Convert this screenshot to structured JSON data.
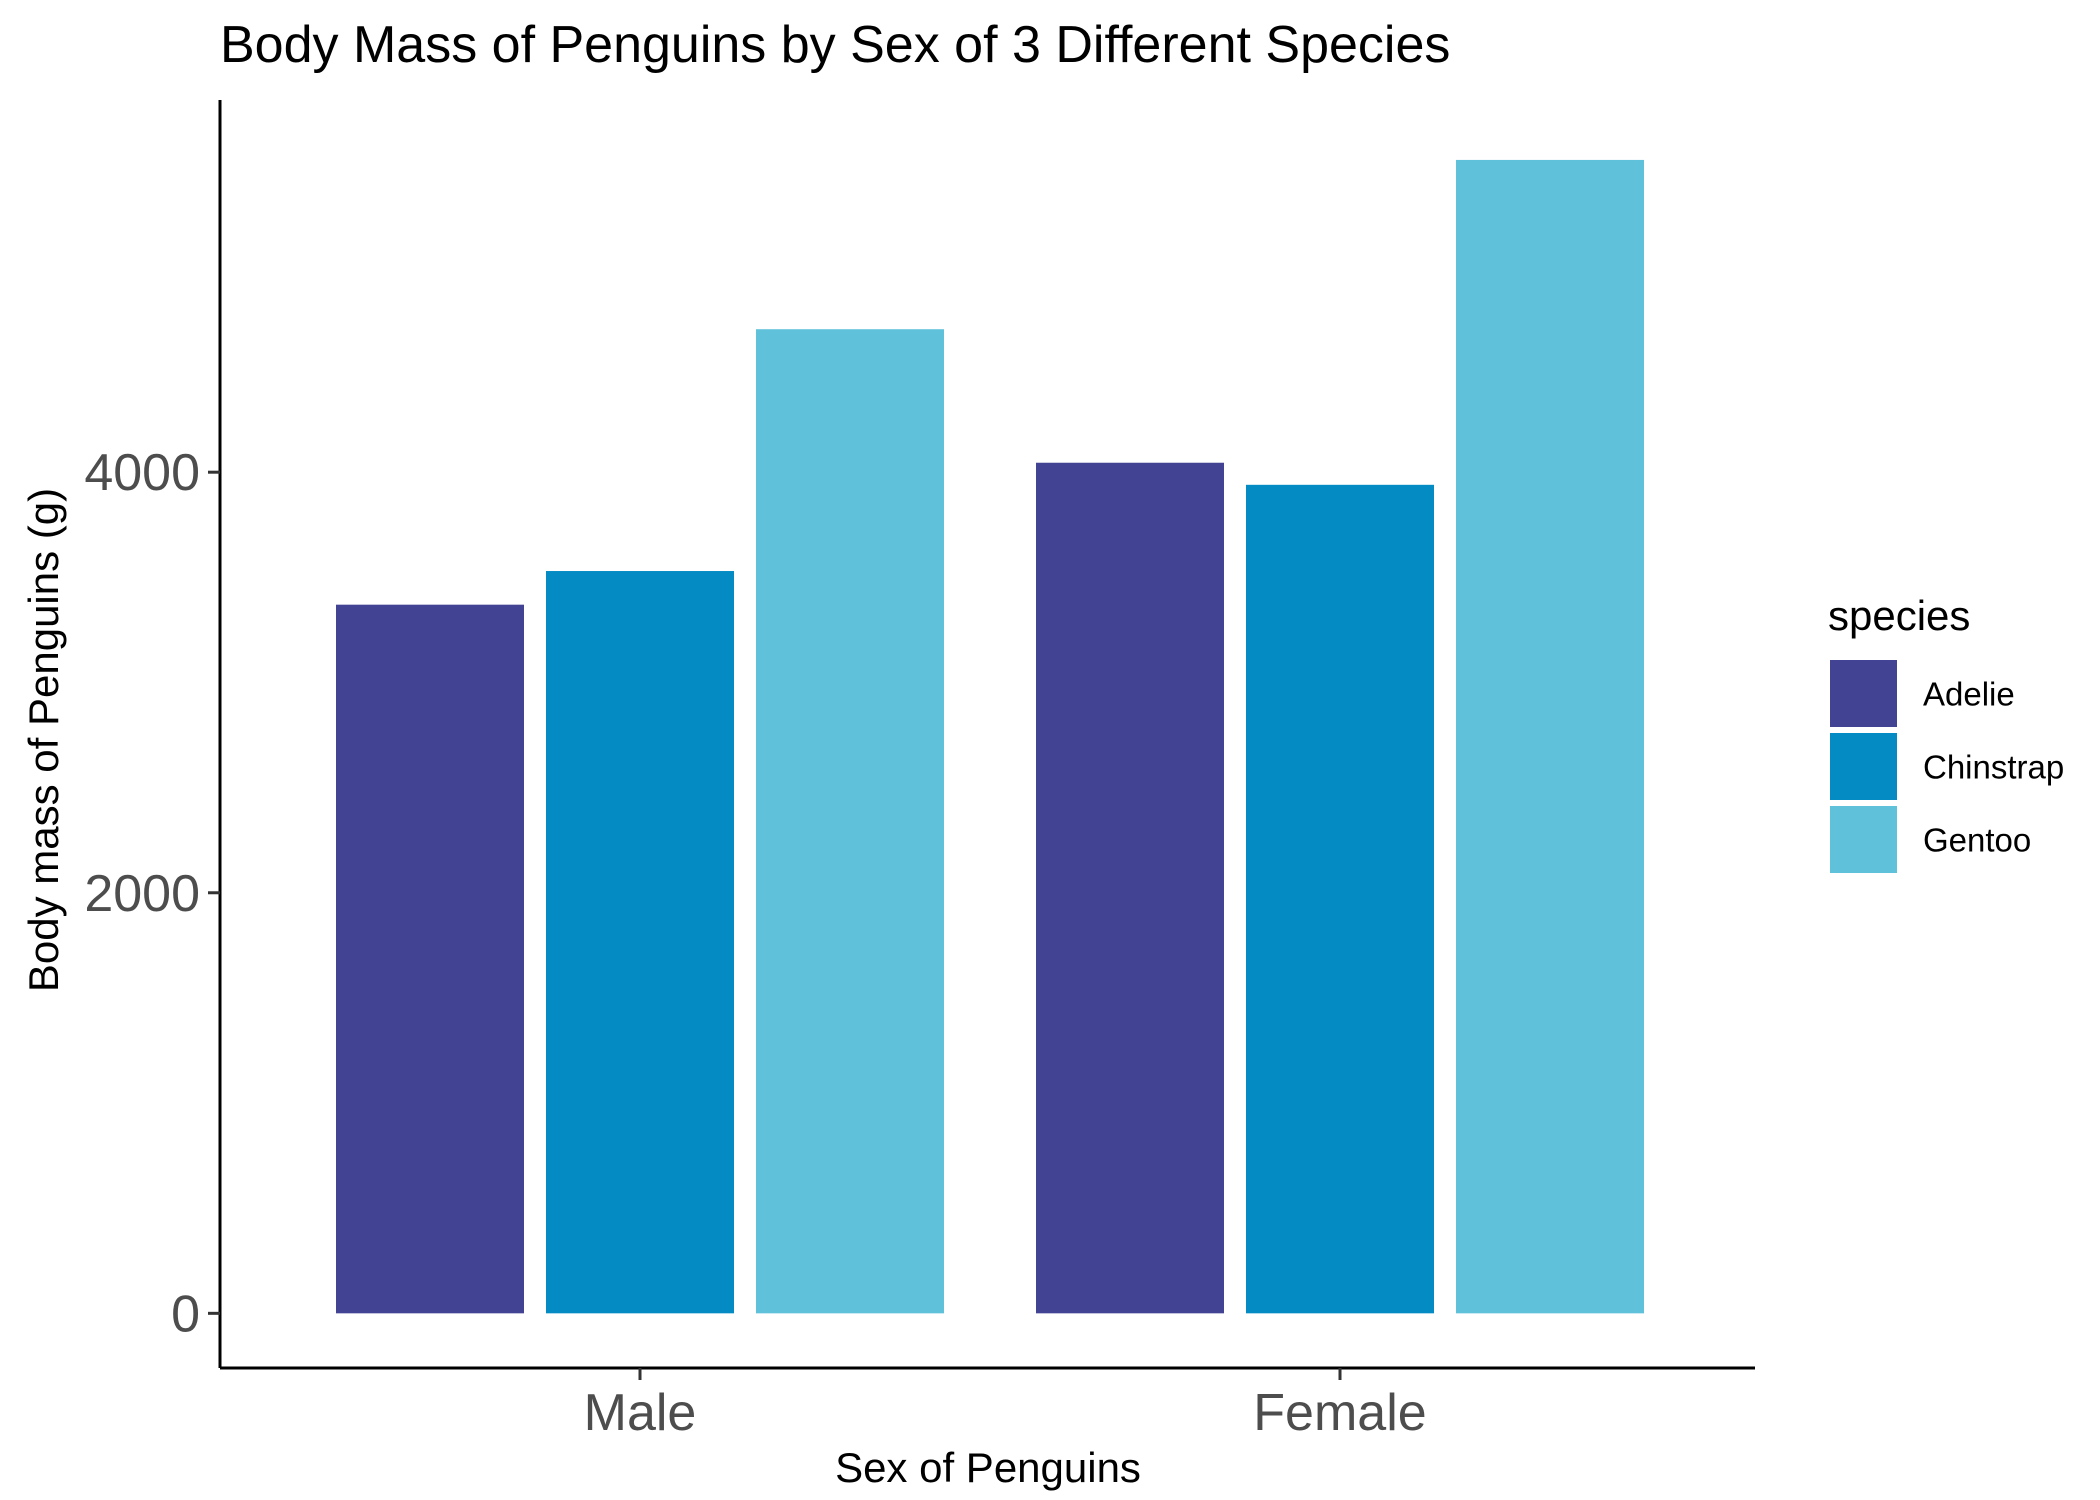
{
  "chart_data": {
    "type": "bar",
    "title": "Body Mass of Penguins by Sex of 3 Different Species",
    "xlabel": "Sex of Penguins",
    "ylabel": "Body mass of Penguins (g)",
    "categories": [
      "Male",
      "Female"
    ],
    "yticks": [
      0,
      2000,
      4000
    ],
    "ylim": [
      -260,
      5770
    ],
    "grid": false,
    "legend": {
      "title": "species",
      "position": "right"
    },
    "series": [
      {
        "name": "Adelie",
        "color": "#434394",
        "values": [
          3370,
          4045
        ]
      },
      {
        "name": "Chinstrap",
        "color": "#048BC4",
        "values": [
          3530,
          3940
        ]
      },
      {
        "name": "Gentoo",
        "color": "#5FC1DA",
        "values": [
          4680,
          5485
        ]
      }
    ]
  }
}
